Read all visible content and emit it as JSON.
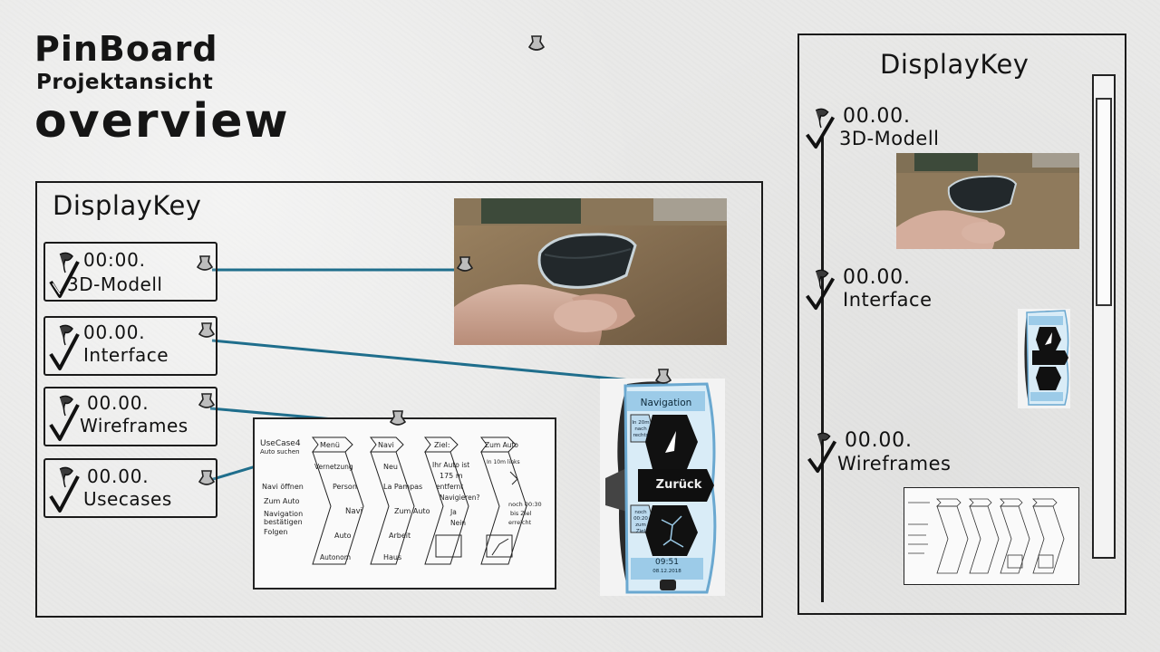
{
  "header": {
    "title": "PinBoard",
    "subtitle": "Projektansicht",
    "view": "overview"
  },
  "main_panel": {
    "title": "DisplayKey",
    "cards": [
      {
        "date": "00:00.",
        "label": "3D-Modell"
      },
      {
        "date": "00.00.",
        "label": "Interface"
      },
      {
        "date": "00.00.",
        "label": "Wireframes"
      },
      {
        "date": "00.00.",
        "label": "Usecases"
      }
    ]
  },
  "side_panel": {
    "title": "DisplayKey",
    "entries": [
      {
        "date": "00.00.",
        "label": "3D-Modell"
      },
      {
        "date": "00.00.",
        "label": "Interface"
      },
      {
        "date": "00.00.",
        "label": "Wireframes"
      }
    ]
  },
  "device_screen": {
    "navigation": "Navigation",
    "top_info": "In 20m nach rechts",
    "back": "Zurück",
    "bottom_info": "noch 00:20 zum Ziel",
    "time": "09:51",
    "date": "08.12.2018"
  },
  "wireframe": {
    "usecase_title": "UseCase4",
    "usecase_subtitle": "Auto suchen",
    "usecase_steps": [
      "Navi öffnen",
      "Zum Auto",
      "Navigation bestätigen",
      "Folgen"
    ],
    "columns": [
      {
        "title": "Menü",
        "items": [
          "Vernetzung",
          "Person",
          "Navi",
          "Auto",
          "Autonom"
        ]
      },
      {
        "title": "Navi",
        "items": [
          "Neu",
          "La Pampas",
          "Zum Auto",
          "Arbeit",
          "Haus"
        ]
      },
      {
        "title": "Ziel:",
        "items": [
          "Ihr Auto ist",
          "175 m",
          "entfernt",
          "Navigieren?",
          "Ja",
          "Nein"
        ]
      },
      {
        "title": "Zum Auto",
        "items": [
          "In 10m links",
          "noch 00:30",
          "bis Ziel",
          "erreicht"
        ]
      }
    ]
  },
  "colors": {
    "connector": "#1f6e8c",
    "background": "#e9e9e8",
    "screen_blue": "#a9d3ee"
  },
  "icons": [
    "pin-icon",
    "checkmark-icon"
  ]
}
